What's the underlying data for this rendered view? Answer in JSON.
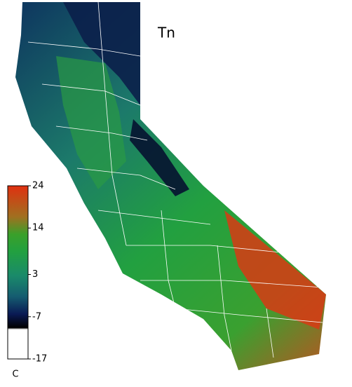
{
  "title": "Tn",
  "colorbar": {
    "unit": "C",
    "lim": [
      -17,
      24
    ],
    "ticks": [
      24,
      14,
      3,
      -7,
      -17
    ]
  }
}
